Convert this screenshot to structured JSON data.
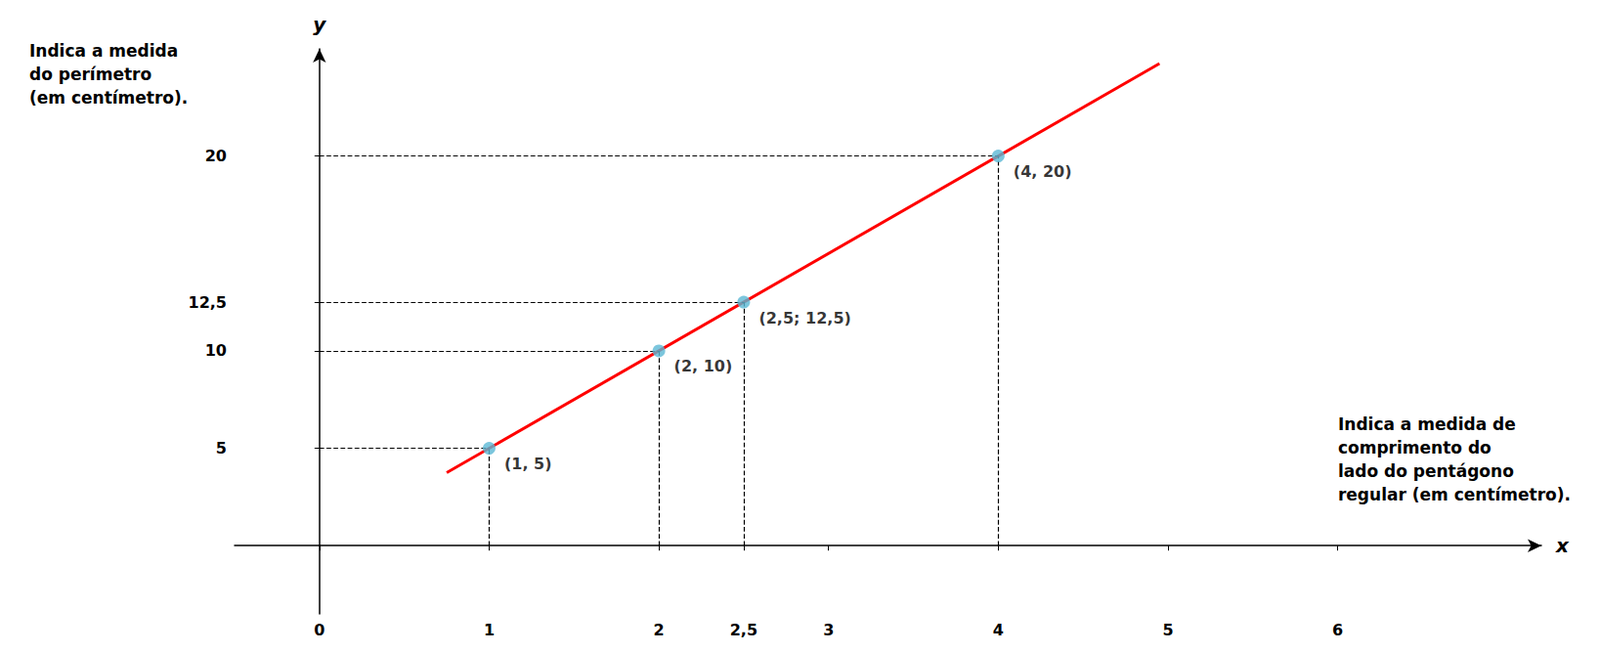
{
  "chart_data": {
    "type": "line",
    "xlabel": "x",
    "ylabel": "y",
    "xlim": [
      -0.5,
      7.2
    ],
    "ylim": [
      -3.5,
      25.5
    ],
    "xticks": [
      0,
      1,
      2,
      {
        "value": 2.5,
        "label": "2,5"
      },
      3,
      4,
      5,
      6
    ],
    "yticks": [
      5,
      10,
      {
        "value": 12.5,
        "label": "12,5"
      },
      20
    ],
    "grid": false,
    "series": [
      {
        "type": "line",
        "color": "red",
        "x": [
          0.75,
          4.95
        ],
        "values": [
          3.75,
          24.75
        ]
      },
      {
        "type": "scatter",
        "color": "#5BB8D4",
        "x": [
          1,
          2,
          2.5,
          4
        ],
        "values": [
          5,
          10,
          12.5,
          20
        ],
        "data_labels": true,
        "value_labels": [
          "(1, 5)",
          "(2, 10)",
          "(2,5; 12,5)",
          "(4, 20)"
        ]
      }
    ],
    "annotations": [
      {
        "axis": "y",
        "text": "Indica a medida\ndo perímetro\n(em centímetro)."
      },
      {
        "axis": "x",
        "text": "Indica a medida de\ncomprimento do\nlado do pentágono\nregular (em centímetro)."
      }
    ]
  }
}
